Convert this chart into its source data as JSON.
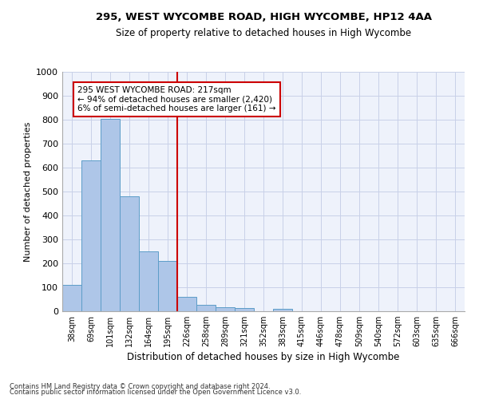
{
  "title1": "295, WEST WYCOMBE ROAD, HIGH WYCOMBE, HP12 4AA",
  "title2": "Size of property relative to detached houses in High Wycombe",
  "xlabel": "Distribution of detached houses by size in High Wycombe",
  "ylabel": "Number of detached properties",
  "bar_labels": [
    "38sqm",
    "69sqm",
    "101sqm",
    "132sqm",
    "164sqm",
    "195sqm",
    "226sqm",
    "258sqm",
    "289sqm",
    "321sqm",
    "352sqm",
    "383sqm",
    "415sqm",
    "446sqm",
    "478sqm",
    "509sqm",
    "540sqm",
    "572sqm",
    "603sqm",
    "635sqm",
    "666sqm"
  ],
  "bar_values": [
    110,
    630,
    805,
    480,
    250,
    210,
    60,
    27,
    18,
    13,
    0,
    10,
    0,
    0,
    0,
    0,
    0,
    0,
    0,
    0,
    0
  ],
  "bar_color": "#aec6e8",
  "bar_edge_color": "#5c9dc8",
  "vline_x": 5.5,
  "vline_color": "#cc0000",
  "ylim": [
    0,
    1000
  ],
  "yticks": [
    0,
    100,
    200,
    300,
    400,
    500,
    600,
    700,
    800,
    900,
    1000
  ],
  "annotation_text": "295 WEST WYCOMBE ROAD: 217sqm\n← 94% of detached houses are smaller (2,420)\n6% of semi-detached houses are larger (161) →",
  "annotation_box_color": "#cc0000",
  "footer1": "Contains HM Land Registry data © Crown copyright and database right 2024.",
  "footer2": "Contains public sector information licensed under the Open Government Licence v3.0.",
  "background_color": "#eef2fb",
  "grid_color": "#c8d0e8"
}
